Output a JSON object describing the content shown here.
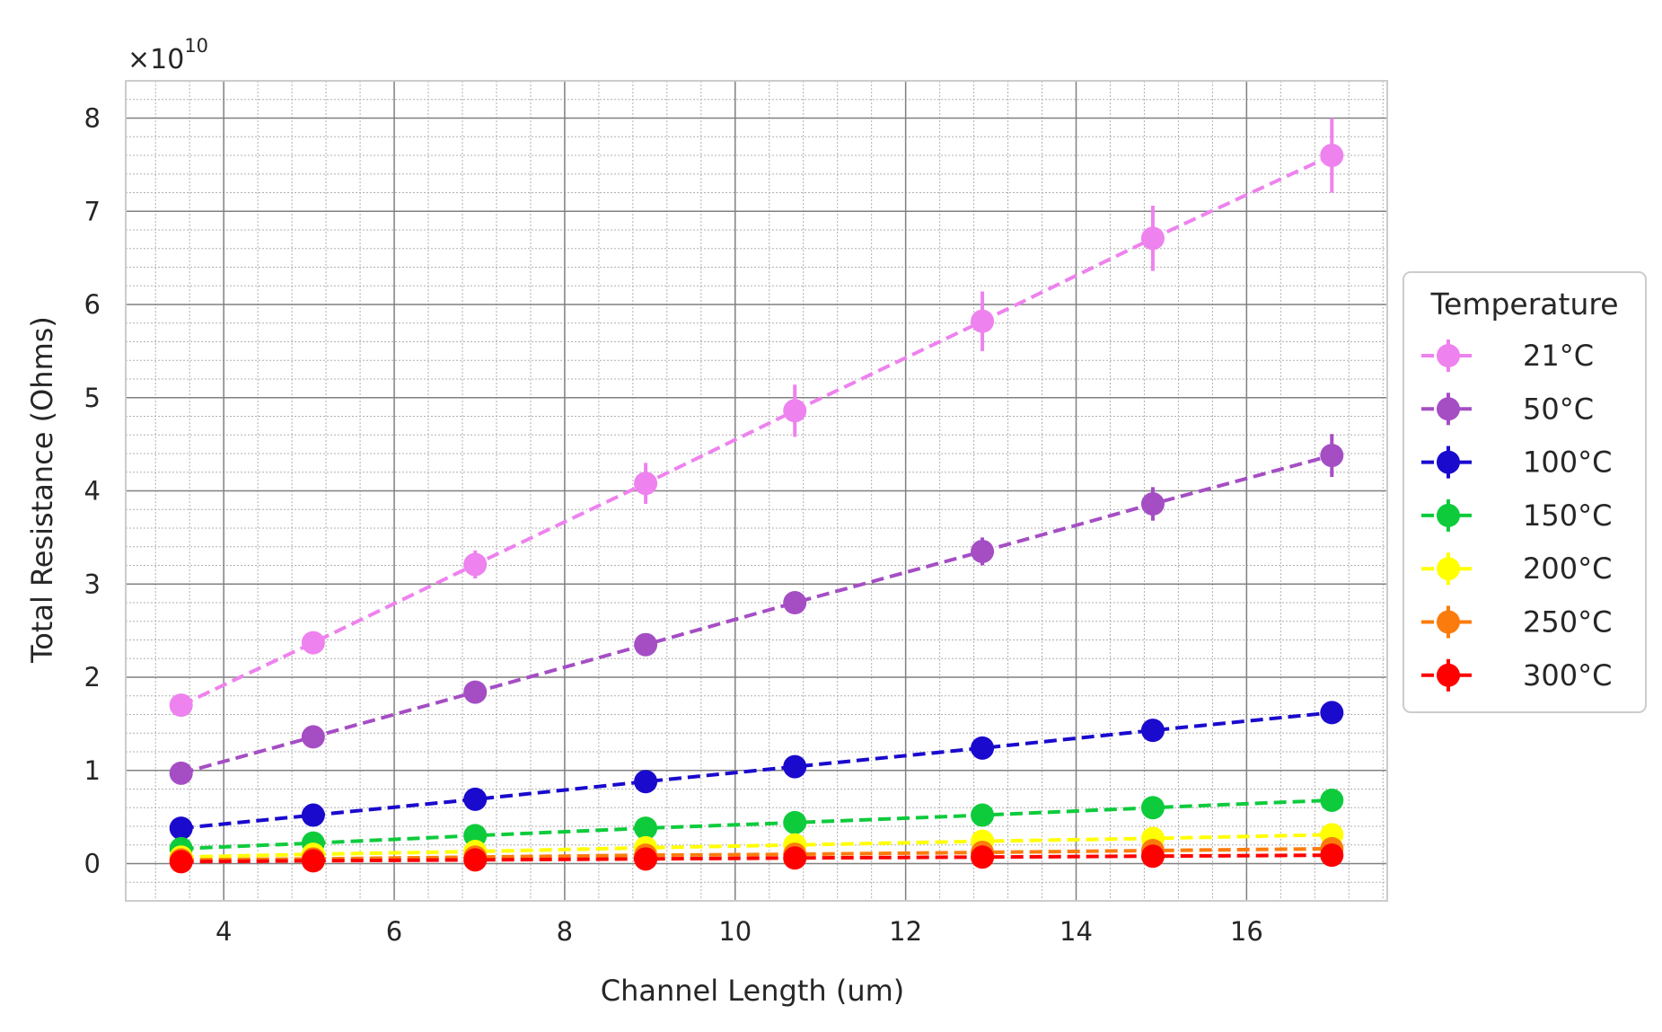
{
  "chart_data": {
    "type": "line",
    "xlabel": "Channel Length (um)",
    "ylabel": "Total Resistance (Ohms)",
    "y_offset": {
      "base": "×10",
      "exponent": "10"
    },
    "xlim": [
      2.85,
      17.65
    ],
    "ylim": [
      -0.4,
      8.4
    ],
    "x_ticks": [
      4,
      6,
      8,
      10,
      12,
      14,
      16
    ],
    "y_ticks": [
      0,
      1,
      2,
      3,
      4,
      5,
      6,
      7,
      8
    ],
    "x_tick_labels": [
      "4",
      "6",
      "8",
      "10",
      "12",
      "14",
      "16"
    ],
    "y_tick_labels": [
      "0",
      "1",
      "2",
      "3",
      "4",
      "5",
      "6",
      "7",
      "8"
    ],
    "grid": {
      "major": true,
      "minor": true
    },
    "legend": {
      "title": "Temperature",
      "placement": "right-outside"
    },
    "x": [
      3.5,
      5.05,
      6.95,
      8.95,
      10.7,
      12.9,
      14.9,
      17.0
    ],
    "series": [
      {
        "name": "21°C",
        "color": "#ee82ee",
        "values": [
          1.7,
          2.37,
          3.21,
          4.08,
          4.86,
          5.82,
          6.71,
          7.6
        ],
        "errors": [
          0.08,
          0.1,
          0.15,
          0.22,
          0.28,
          0.32,
          0.35,
          0.4
        ]
      },
      {
        "name": "50°C",
        "color": "#a54ec4",
        "values": [
          0.97,
          1.36,
          1.84,
          2.35,
          2.8,
          3.35,
          3.86,
          4.38
        ],
        "errors": [
          0.05,
          0.06,
          0.08,
          0.1,
          0.12,
          0.15,
          0.18,
          0.23
        ]
      },
      {
        "name": "100°C",
        "color": "#1a0acd",
        "values": [
          0.38,
          0.52,
          0.69,
          0.88,
          1.04,
          1.24,
          1.43,
          1.62
        ],
        "errors": [
          0.02,
          0.03,
          0.03,
          0.04,
          0.05,
          0.06,
          0.06,
          0.07
        ]
      },
      {
        "name": "150°C",
        "color": "#0ecb3c",
        "values": [
          0.16,
          0.22,
          0.3,
          0.38,
          0.44,
          0.52,
          0.6,
          0.68
        ],
        "errors": [
          0.01,
          0.01,
          0.02,
          0.02,
          0.02,
          0.03,
          0.03,
          0.03
        ]
      },
      {
        "name": "200°C",
        "color": "#ffff00",
        "values": [
          0.07,
          0.1,
          0.13,
          0.17,
          0.2,
          0.24,
          0.27,
          0.31
        ],
        "errors": [
          0.01,
          0.01,
          0.01,
          0.01,
          0.01,
          0.01,
          0.02,
          0.02
        ]
      },
      {
        "name": "250°C",
        "color": "#fb7c0c",
        "values": [
          0.04,
          0.05,
          0.07,
          0.09,
          0.1,
          0.12,
          0.14,
          0.16
        ],
        "errors": [
          0.005,
          0.005,
          0.005,
          0.01,
          0.01,
          0.01,
          0.01,
          0.01
        ]
      },
      {
        "name": "300°C",
        "color": "#ff0000",
        "values": [
          0.02,
          0.03,
          0.04,
          0.05,
          0.06,
          0.07,
          0.08,
          0.09
        ],
        "errors": [
          0.003,
          0.003,
          0.004,
          0.004,
          0.005,
          0.005,
          0.006,
          0.006
        ]
      }
    ]
  }
}
